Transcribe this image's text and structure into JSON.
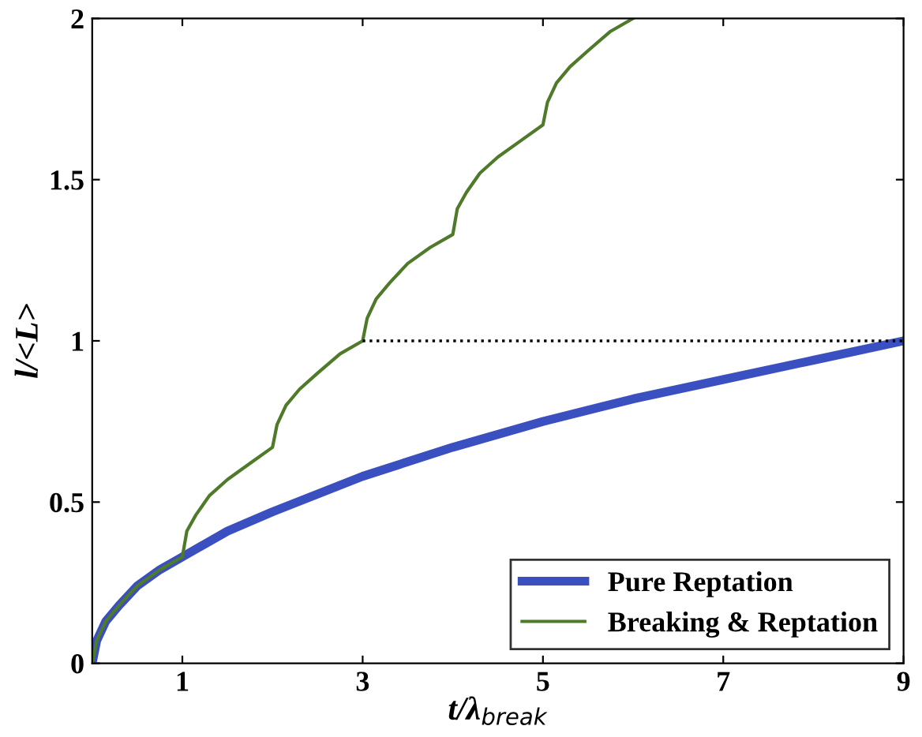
{
  "chart_data": {
    "type": "line",
    "xlabel": "t/λ$_{break}$",
    "ylabel": "l/<L>",
    "xlim": [
      0,
      9
    ],
    "ylim": [
      0,
      2
    ],
    "xticks": [
      1,
      3,
      5,
      7,
      9
    ],
    "yticks": [
      0,
      0.5,
      1,
      1.5,
      2
    ],
    "grid": false,
    "legend": "bottom right",
    "marker": "none",
    "series": [
      {
        "name": "Pure Reptation",
        "color": "#3a4fc0",
        "x": [
          0,
          0.05,
          0.15,
          0.3,
          0.5,
          0.75,
          1,
          1.5,
          2,
          3,
          4,
          5,
          6,
          7,
          8,
          9
        ],
        "values": [
          0,
          0.07,
          0.13,
          0.18,
          0.24,
          0.29,
          0.33,
          0.41,
          0.47,
          0.58,
          0.67,
          0.75,
          0.82,
          0.88,
          0.94,
          1.0
        ]
      },
      {
        "name": "Breaking & Reptation",
        "color": "#4e7a2a",
        "x": [
          0,
          0.05,
          0.15,
          0.3,
          0.5,
          0.75,
          1,
          1.05,
          1.15,
          1.3,
          1.5,
          1.75,
          2,
          2.05,
          2.15,
          2.3,
          2.5,
          2.75,
          3,
          3.05,
          3.15,
          3.3,
          3.5,
          3.75,
          4,
          4.05,
          4.15,
          4.3,
          4.5,
          4.75,
          5,
          5.05,
          5.15,
          5.3,
          5.5,
          5.75,
          6
        ],
        "values": [
          0,
          0.07,
          0.13,
          0.18,
          0.24,
          0.29,
          0.33,
          0.41,
          0.46,
          0.52,
          0.57,
          0.62,
          0.67,
          0.74,
          0.8,
          0.85,
          0.9,
          0.96,
          1.0,
          1.07,
          1.13,
          1.18,
          1.24,
          1.29,
          1.33,
          1.41,
          1.46,
          1.52,
          1.57,
          1.62,
          1.67,
          1.74,
          1.8,
          1.85,
          1.9,
          1.96,
          2.0
        ]
      },
      {
        "color": "#000000",
        "line_style": "dotted",
        "x": [
          3,
          9
        ],
        "values": [
          1,
          1
        ]
      }
    ]
  }
}
